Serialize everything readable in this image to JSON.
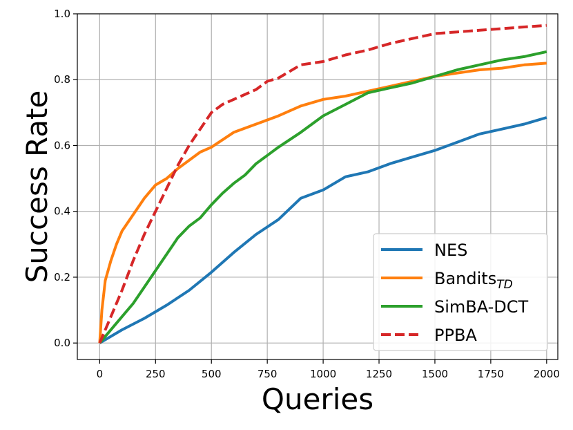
{
  "chart_data": {
    "type": "line",
    "title": "",
    "xlabel": "Queries",
    "ylabel": "Success Rate",
    "xlim": [
      -100,
      2050
    ],
    "ylim": [
      -0.05,
      1.0
    ],
    "xticks": [
      "0",
      "250",
      "500",
      "750",
      "1000",
      "1250",
      "1500",
      "1750",
      "2000"
    ],
    "yticks": [
      "0.0",
      "0.2",
      "0.4",
      "0.6",
      "0.8",
      "1.0"
    ],
    "grid": true,
    "legend_position": "lower-right",
    "series": [
      {
        "name": "NES",
        "color": "#1f77b4",
        "style": "solid",
        "x": [
          0,
          100,
          200,
          300,
          400,
          500,
          600,
          700,
          800,
          900,
          1000,
          1100,
          1200,
          1300,
          1400,
          1500,
          1600,
          1700,
          1800,
          1900,
          2000
        ],
        "y": [
          0.0,
          0.04,
          0.075,
          0.115,
          0.16,
          0.215,
          0.275,
          0.33,
          0.375,
          0.44,
          0.465,
          0.505,
          0.52,
          0.545,
          0.565,
          0.585,
          0.61,
          0.635,
          0.65,
          0.665,
          0.685
        ]
      },
      {
        "name": "Bandits",
        "name_sub": "TD",
        "color": "#ff7f0e",
        "style": "solid",
        "x": [
          0,
          10,
          25,
          50,
          75,
          100,
          150,
          200,
          250,
          300,
          350,
          400,
          450,
          500,
          600,
          700,
          800,
          900,
          1000,
          1100,
          1200,
          1300,
          1400,
          1500,
          1600,
          1700,
          1800,
          1900,
          2000
        ],
        "y": [
          0.0,
          0.1,
          0.19,
          0.25,
          0.3,
          0.34,
          0.39,
          0.44,
          0.48,
          0.5,
          0.53,
          0.555,
          0.58,
          0.595,
          0.64,
          0.665,
          0.69,
          0.72,
          0.74,
          0.75,
          0.765,
          0.78,
          0.795,
          0.81,
          0.82,
          0.83,
          0.835,
          0.845,
          0.85
        ]
      },
      {
        "name": "SimBA-DCT",
        "color": "#2ca02c",
        "style": "solid",
        "x": [
          0,
          50,
          100,
          150,
          200,
          250,
          300,
          350,
          400,
          450,
          500,
          550,
          600,
          650,
          700,
          750,
          800,
          900,
          1000,
          1100,
          1200,
          1300,
          1400,
          1500,
          1600,
          1700,
          1800,
          1900,
          2000
        ],
        "y": [
          0.0,
          0.04,
          0.08,
          0.12,
          0.17,
          0.22,
          0.27,
          0.32,
          0.355,
          0.38,
          0.42,
          0.455,
          0.485,
          0.51,
          0.545,
          0.57,
          0.595,
          0.64,
          0.69,
          0.725,
          0.76,
          0.775,
          0.79,
          0.81,
          0.83,
          0.845,
          0.86,
          0.87,
          0.885
        ]
      },
      {
        "name": "PPBA",
        "color": "#d62728",
        "style": "dashed",
        "x": [
          0,
          25,
          50,
          100,
          150,
          200,
          250,
          300,
          350,
          400,
          450,
          500,
          550,
          600,
          700,
          750,
          800,
          900,
          1000,
          1100,
          1200,
          1300,
          1400,
          1500,
          1600,
          1700,
          1800,
          1900,
          2000
        ],
        "y": [
          0.0,
          0.04,
          0.08,
          0.16,
          0.25,
          0.33,
          0.4,
          0.47,
          0.54,
          0.6,
          0.65,
          0.7,
          0.725,
          0.74,
          0.77,
          0.795,
          0.805,
          0.845,
          0.855,
          0.875,
          0.89,
          0.91,
          0.925,
          0.94,
          0.945,
          0.95,
          0.955,
          0.96,
          0.965
        ]
      }
    ]
  }
}
